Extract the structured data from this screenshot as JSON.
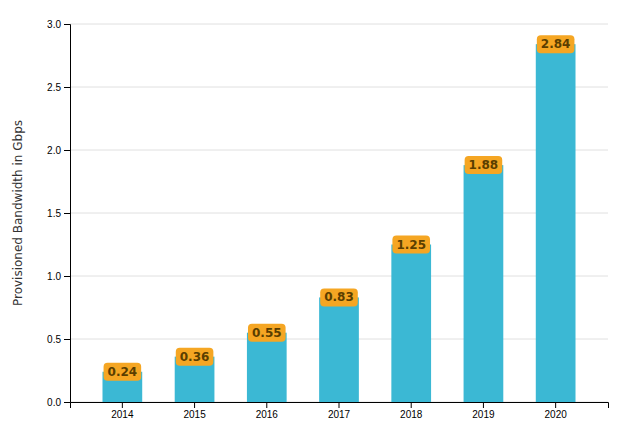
{
  "chart_data": {
    "type": "bar",
    "categories": [
      "2014",
      "2015",
      "2016",
      "2017",
      "2018",
      "2019",
      "2020"
    ],
    "values": [
      0.24,
      0.36,
      0.55,
      0.83,
      1.25,
      1.88,
      2.84
    ],
    "color": "#3BB8D4",
    "ylabel": "Provisioned Bandwidth in Gbps",
    "ylim": [
      0.0,
      3.0
    ],
    "yticks": [
      {
        "value": 0,
        "label": "0.0"
      },
      {
        "value": 0.5,
        "label": "0.5"
      },
      {
        "value": 1,
        "label": "1.0"
      },
      {
        "value": 1.5,
        "label": "1.5"
      },
      {
        "value": 2,
        "label": "2.0"
      },
      {
        "value": 2.5,
        "label": "2.5"
      },
      {
        "value": 3,
        "label": "3.0"
      }
    ],
    "grid": true,
    "data_labels": true
  }
}
